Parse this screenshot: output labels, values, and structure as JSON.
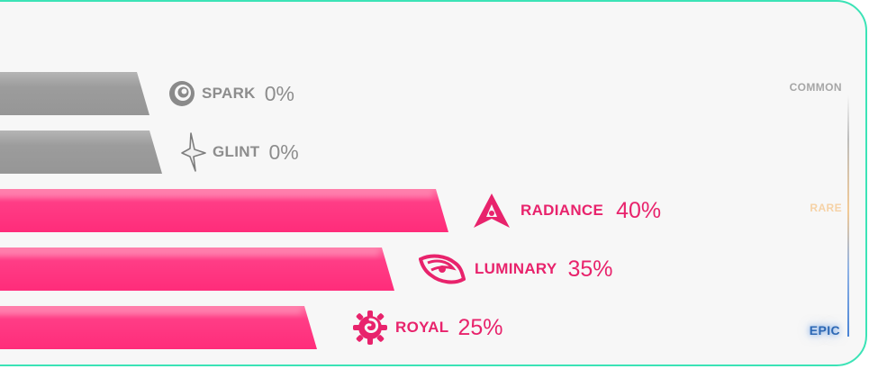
{
  "rarity_rows": [
    {
      "name": "SPARK",
      "percent": "0%",
      "icon": "spiral-circle-icon",
      "tier": "common"
    },
    {
      "name": "GLINT",
      "percent": "0%",
      "icon": "four-point-star-icon",
      "tier": "common"
    },
    {
      "name": "RADIANCE",
      "percent": "40%",
      "icon": "triangle-burst-icon",
      "tier": "rare"
    },
    {
      "name": "LUMINARY",
      "percent": "35%",
      "icon": "swirl-ring-icon",
      "tier": "rare"
    },
    {
      "name": "ROYAL",
      "percent": "25%",
      "icon": "gear-spiral-icon",
      "tier": "epic"
    }
  ],
  "tiers": {
    "common": "COMMON",
    "rare": "RARE",
    "epic": "EPIC"
  },
  "colors": {
    "accent_pink": "#ff2c7a",
    "muted_gray": "#9c9c9c",
    "panel_border": "#3be3b6",
    "epic_blue": "#2d68b4",
    "rare_peach": "#f6d2a6"
  }
}
